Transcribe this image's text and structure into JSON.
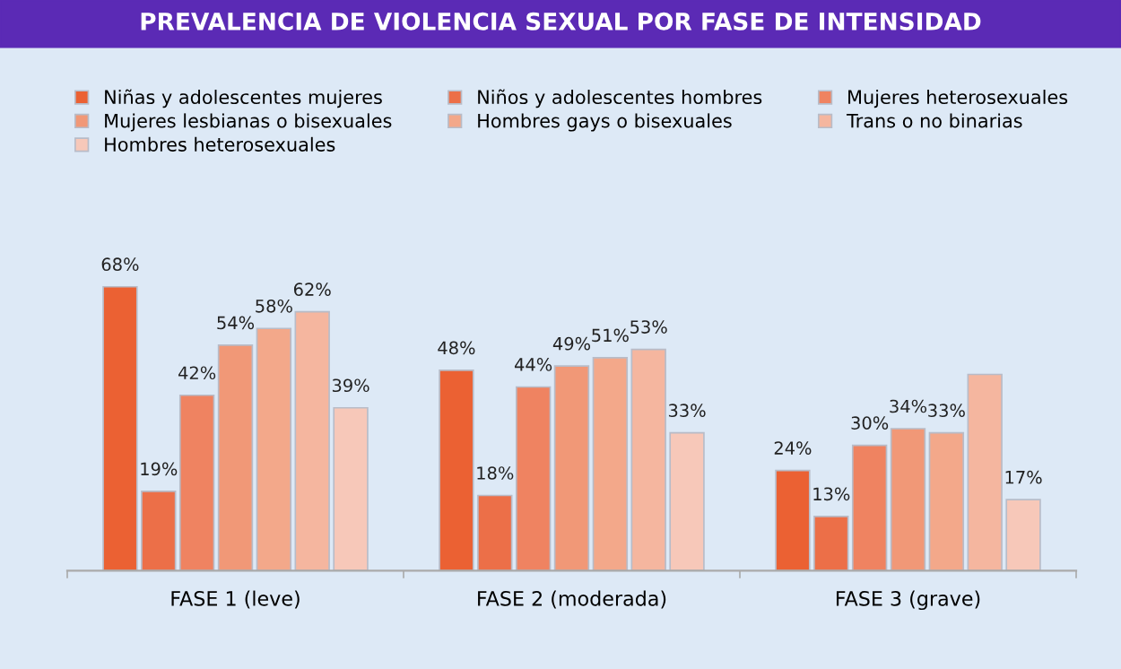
{
  "chart_data": {
    "type": "bar",
    "title": "PREVALENCIA DE VIOLENCIA SEXUAL POR FASE DE INTENSIDAD",
    "categories": [
      "FASE 1 (leve)",
      "FASE 2 (moderada)",
      "FASE 3 (grave)"
    ],
    "series": [
      {
        "name": "Niñas y adolescentes mujeres",
        "color": "#eb6133",
        "values": [
          68,
          48,
          24
        ],
        "value_labels": [
          "68%",
          "48%",
          "24%"
        ]
      },
      {
        "name": "Niños y adolescentes hombres",
        "color": "#ec6f48",
        "values": [
          19,
          18,
          13
        ],
        "value_labels": [
          "19%",
          "18%",
          "13%"
        ]
      },
      {
        "name": "Mujeres heterosexuales",
        "color": "#ef8361",
        "values": [
          42,
          44,
          30
        ],
        "value_labels": [
          "42%",
          "44%",
          "30%"
        ]
      },
      {
        "name": "Mujeres lesbianas o bisexuales",
        "color": "#f19877",
        "values": [
          54,
          49,
          34
        ],
        "value_labels": [
          "54%",
          "49%",
          "34%"
        ]
      },
      {
        "name": "Hombres gays o bisexuales",
        "color": "#f3a88a",
        "values": [
          58,
          51,
          33
        ],
        "value_labels": [
          "58%",
          "51%",
          "33%"
        ]
      },
      {
        "name": "Trans o no binarias",
        "color": "#f5b69f",
        "values": [
          62,
          53,
          47
        ],
        "value_labels": [
          "62%",
          "53%",
          null
        ]
      },
      {
        "name": "Hombres heterosexuales",
        "color": "#f7c8b9",
        "values": [
          39,
          33,
          17
        ],
        "value_labels": [
          "39%",
          "33%",
          "17%"
        ]
      }
    ],
    "legend": "top"
  }
}
